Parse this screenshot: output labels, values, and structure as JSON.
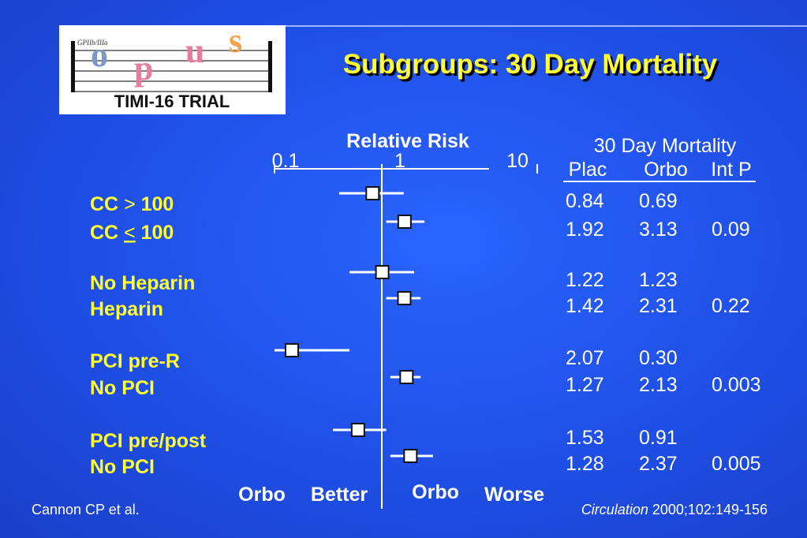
{
  "logo": {
    "top_text": "GPIIb/IIIa",
    "letters": [
      "o",
      "p",
      "u",
      "s"
    ],
    "caption": "TIMI-16 TRIAL"
  },
  "title": "Subgroups: 30 Day Mortality",
  "axis": {
    "label": "Relative Risk",
    "tick_labels": [
      "0.1",
      "1",
      "10"
    ]
  },
  "table": {
    "heading": "30 Day Mortality",
    "columns": [
      "Plac",
      "Orbo",
      "Int P"
    ]
  },
  "bottom_labels": {
    "left": [
      "Orbo",
      "Better"
    ],
    "right": [
      "Orbo",
      "Worse"
    ]
  },
  "footer": {
    "left": "Cannon CP et al.",
    "journal": "Circulation",
    "ref": " 2000;102:149-156"
  },
  "chart_data": {
    "type": "forest",
    "scale": "log",
    "xlim": [
      0.1,
      10
    ],
    "reference_line": 1,
    "rows": [
      {
        "label_prefix": "CC ",
        "label_symbol": ">",
        "label_suffix": " 100",
        "rr": 0.82,
        "ci": [
          0.4,
          1.6
        ],
        "plac": "0.84",
        "orbo": "0.69",
        "int_p": ""
      },
      {
        "label_prefix": "CC ",
        "label_symbol": "<",
        "label_suffix": " 100",
        "underline_symbol": true,
        "rr": 1.63,
        "ci": [
          1.1,
          2.5
        ],
        "plac": "1.92",
        "orbo": "3.13",
        "int_p": "0.09"
      },
      {
        "label_prefix": "No Heparin",
        "label_symbol": "",
        "label_suffix": "",
        "rr": 1.01,
        "ci": [
          0.5,
          2.0
        ],
        "plac": "1.22",
        "orbo": "1.23",
        "int_p": ""
      },
      {
        "label_prefix": "Heparin",
        "label_symbol": "",
        "label_suffix": "",
        "rr": 1.62,
        "ci": [
          1.1,
          2.3
        ],
        "plac": "1.42",
        "orbo": "2.31",
        "int_p": "0.22"
      },
      {
        "label_prefix": "PCI pre-R",
        "label_symbol": "",
        "label_suffix": "",
        "rr": 0.145,
        "ci": [
          0.1,
          0.5
        ],
        "plac": "2.07",
        "orbo": "0.30",
        "int_p": ""
      },
      {
        "label_prefix": "No PCI",
        "label_symbol": "",
        "label_suffix": "",
        "rr": 1.7,
        "ci": [
          1.2,
          2.3
        ],
        "plac": "1.27",
        "orbo": "2.13",
        "int_p": "0.003"
      },
      {
        "label_prefix": "PCI pre/post",
        "label_symbol": "",
        "label_suffix": "",
        "rr": 0.6,
        "ci": [
          0.35,
          1.1
        ],
        "plac": "1.53",
        "orbo": "0.91",
        "int_p": ""
      },
      {
        "label_prefix": "No PCI",
        "label_symbol": "",
        "label_suffix": "",
        "rr": 1.85,
        "ci": [
          1.2,
          3.0
        ],
        "plac": "1.28",
        "orbo": "2.37",
        "int_p": "0.005"
      }
    ]
  }
}
